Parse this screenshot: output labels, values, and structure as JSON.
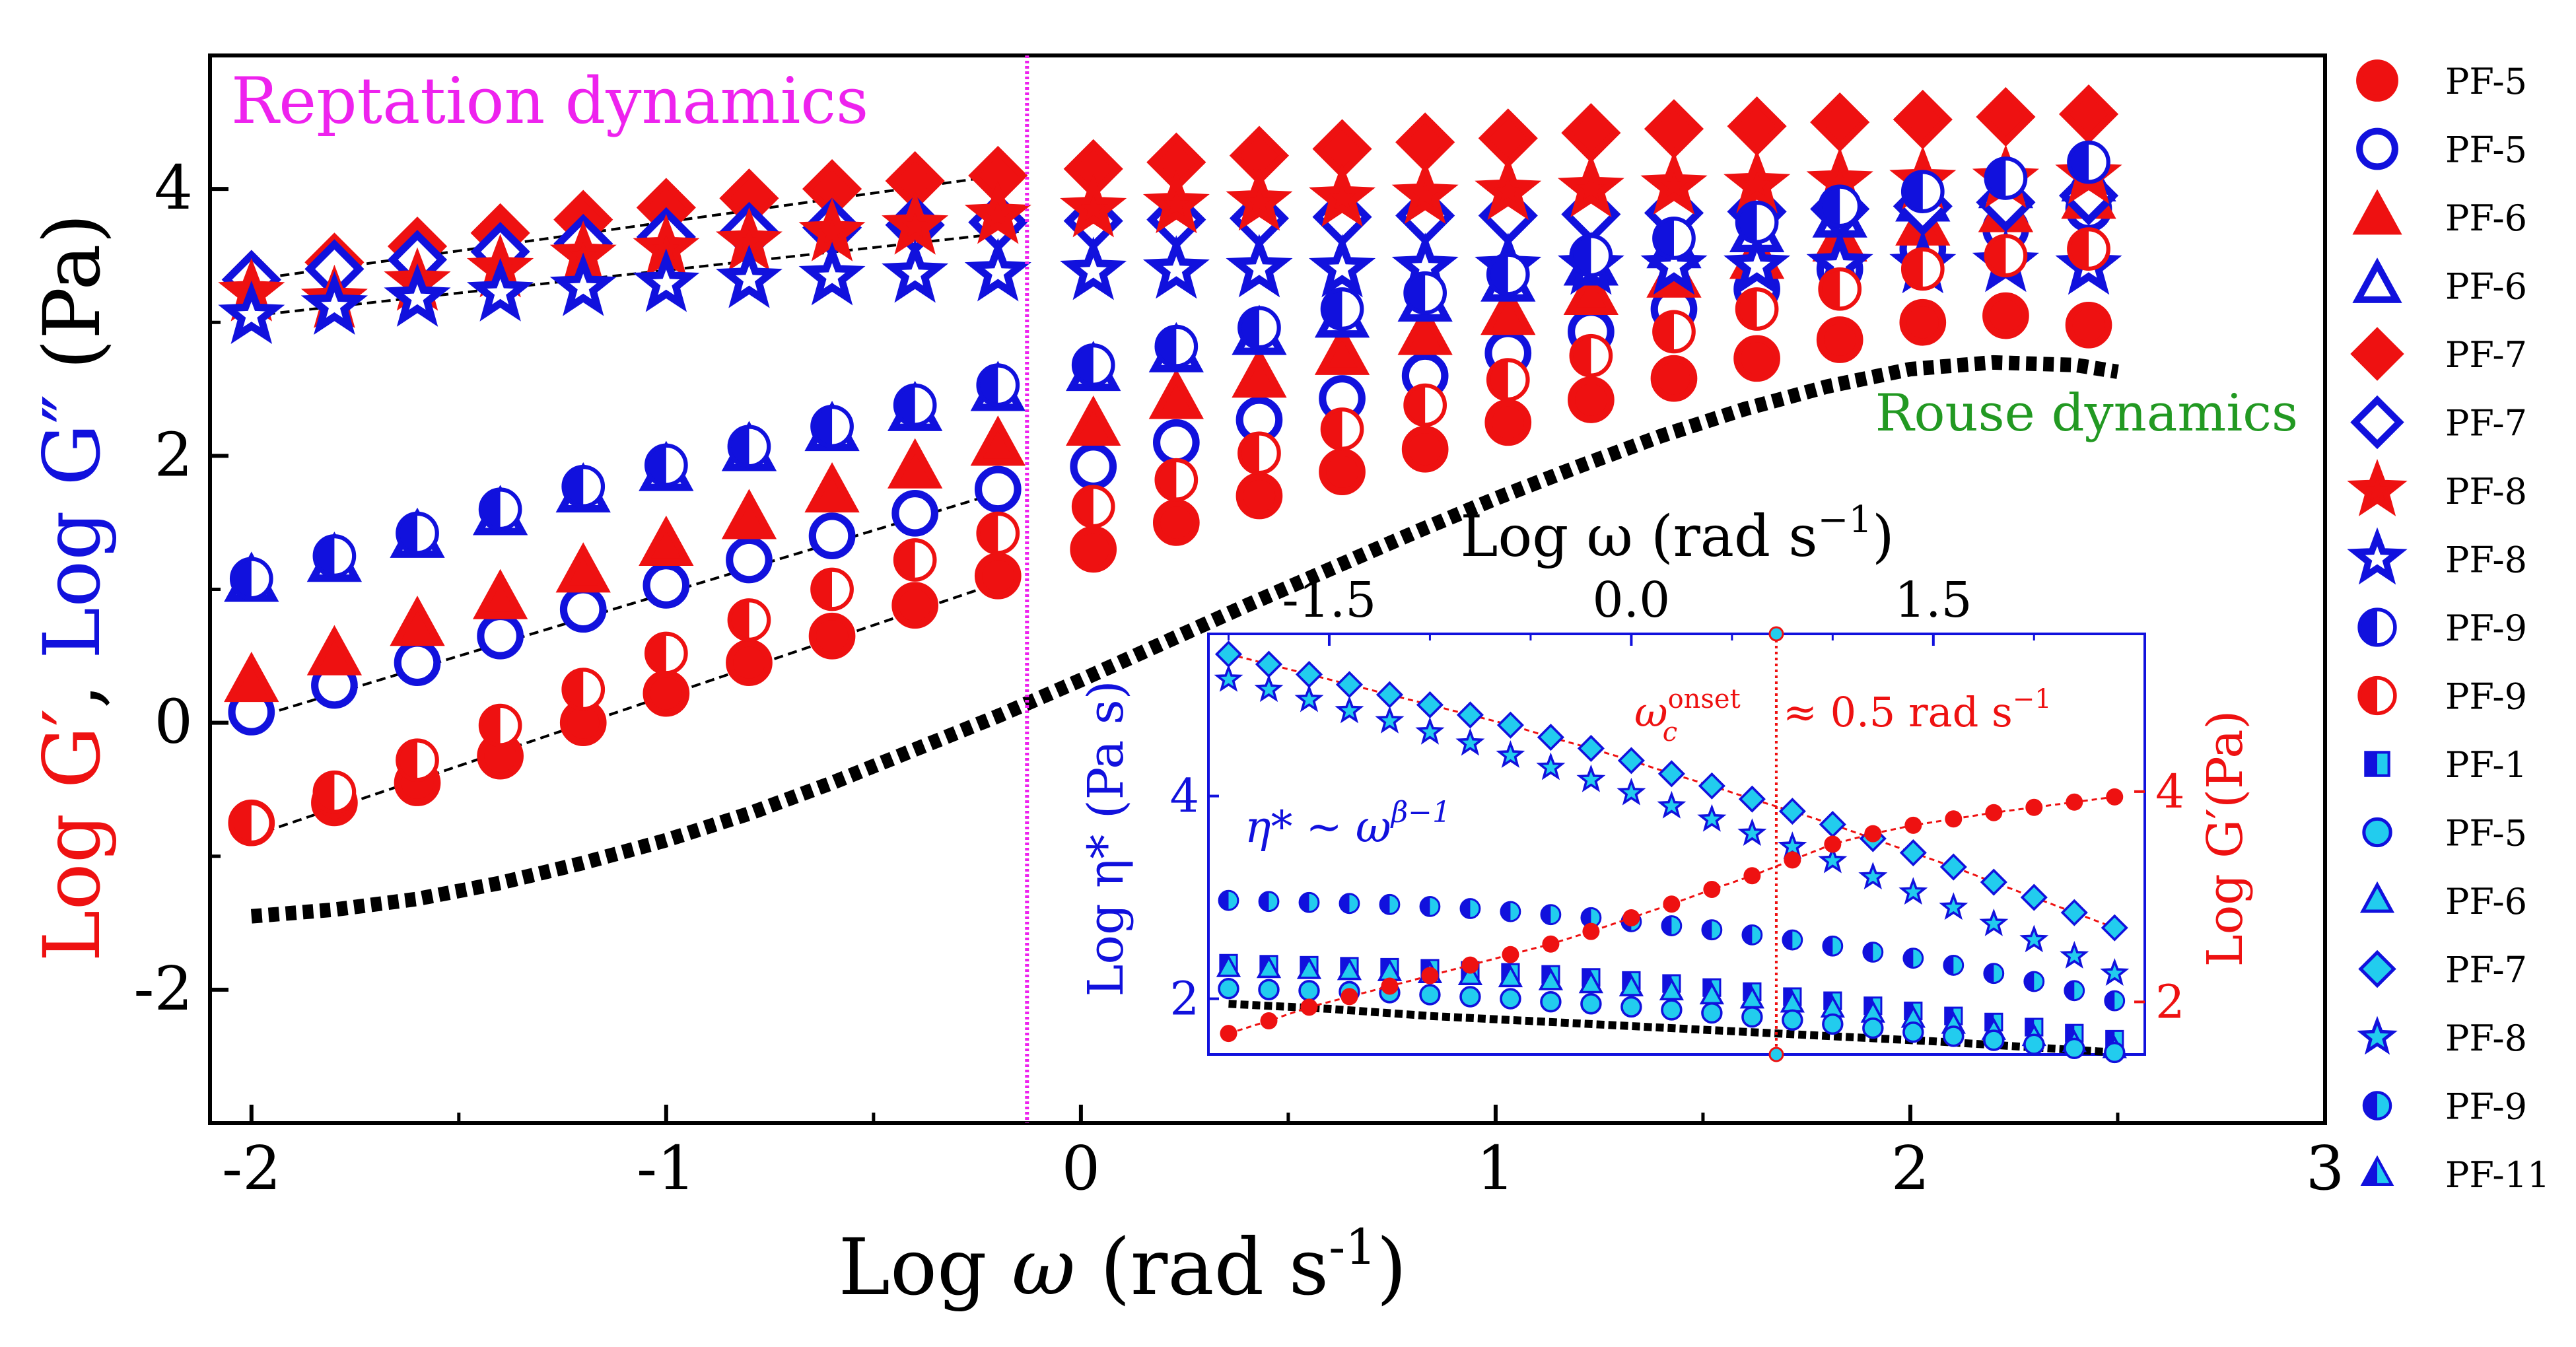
{
  "colors": {
    "red": "#ee1111",
    "blue": "#1111dd",
    "magenta": "#ee22ee",
    "green": "#229922",
    "cyan": "#22ccee",
    "black": "#000000"
  },
  "main": {
    "x_label_prefix": "Log ",
    "x_label_symbol": "ω",
    "x_label_unit": " (rad s",
    "x_label_sup": "-1",
    "x_label_close": ")",
    "y_label_part1": "Log G′",
    "y_label_sep": ", ",
    "y_label_part2": "Log G″",
    "y_label_unit": " (Pa)",
    "annotation_reptation": "Reptation dynamics",
    "annotation_rouse": "Rouse dynamics"
  },
  "inset": {
    "top_label": "Log ω (rad s",
    "top_label_sup": "−1",
    "top_label_close": ")",
    "left_label": "Log η* (Pa s)",
    "right_label": "Log G′(Pa)",
    "eq_eta": "η*",
    "eq_tilde": "~",
    "eq_omega": "ω",
    "eq_exp": "β−1",
    "omega_c": "ω",
    "omega_c_sup": "onset",
    "omega_c_sub": "c",
    "omega_c_value": "≈ 0.5 rad s",
    "omega_c_value_sup": "−1"
  },
  "legend": [
    {
      "label": "PF-5",
      "marker": "circle",
      "fill": "full",
      "color": "red"
    },
    {
      "label": "PF-5",
      "marker": "circle",
      "fill": "none",
      "color": "blue"
    },
    {
      "label": "PF-6",
      "marker": "triangle",
      "fill": "full",
      "color": "red"
    },
    {
      "label": "PF-6",
      "marker": "triangle",
      "fill": "none",
      "color": "blue"
    },
    {
      "label": "PF-7",
      "marker": "diamond",
      "fill": "full",
      "color": "red"
    },
    {
      "label": "PF-7",
      "marker": "diamond",
      "fill": "none",
      "color": "blue"
    },
    {
      "label": "PF-8",
      "marker": "star",
      "fill": "full",
      "color": "red"
    },
    {
      "label": "PF-8",
      "marker": "star",
      "fill": "none",
      "color": "blue"
    },
    {
      "label": "PF-9",
      "marker": "circle",
      "fill": "half",
      "color": "blue"
    },
    {
      "label": "PF-9",
      "marker": "circle",
      "fill": "half",
      "color": "red"
    },
    {
      "label": "PF-1",
      "marker": "square",
      "fill": "half",
      "color": "cyan"
    },
    {
      "label": "PF-5",
      "marker": "circle",
      "fill": "cyanfull",
      "color": "cyan"
    },
    {
      "label": "PF-6",
      "marker": "triangle",
      "fill": "cyanfull",
      "color": "cyan"
    },
    {
      "label": "PF-7",
      "marker": "diamond",
      "fill": "cyanfull",
      "color": "cyan"
    },
    {
      "label": "PF-8",
      "marker": "star",
      "fill": "cyanfull",
      "color": "cyan"
    },
    {
      "label": "PF-9",
      "marker": "circle",
      "fill": "half",
      "color": "cyan"
    },
    {
      "label": "PF-11",
      "marker": "triangle",
      "fill": "half",
      "color": "cyan"
    }
  ],
  "chart_data": [
    {
      "type": "scatter",
      "title": "",
      "xlabel": "Log ω (rad s-1)",
      "ylabel": "Log G′, Log G″ (Pa)",
      "xlim": [
        -2.1,
        3.0
      ],
      "ylim": [
        -3.0,
        5.0
      ],
      "xticks": [
        -2,
        -1,
        0,
        1,
        2,
        3
      ],
      "yticks": [
        -2,
        0,
        2,
        4
      ],
      "x": [
        -2.0,
        -1.8,
        -1.6,
        -1.4,
        -1.2,
        -1.0,
        -0.8,
        -0.6,
        -0.4,
        -0.2,
        0.0,
        0.2,
        0.4,
        0.6,
        0.8,
        1.0,
        1.2,
        1.4,
        1.6,
        1.8,
        2.0,
        2.2,
        2.4
      ],
      "x_display": [
        -2.0,
        -1.8,
        -1.6,
        -1.4,
        -1.2,
        -1.0,
        -0.8,
        -0.6,
        -0.4,
        -0.2,
        0.03,
        0.23,
        0.43,
        0.63,
        0.83,
        1.03,
        1.23,
        1.43,
        1.63,
        1.83,
        2.03,
        2.23,
        2.43
      ],
      "series": [
        {
          "name": "PF-5 G′",
          "marker": "circle",
          "fill": "full",
          "color": "red",
          "values": [
            -0.75,
            -0.6,
            -0.45,
            -0.25,
            0.0,
            0.22,
            0.45,
            0.65,
            0.88,
            1.1,
            1.3,
            1.5,
            1.7,
            1.88,
            2.05,
            2.25,
            2.42,
            2.58,
            2.73,
            2.87,
            3.0,
            3.05,
            2.98
          ]
        },
        {
          "name": "PF-5 G″",
          "marker": "circle",
          "fill": "none",
          "color": "blue",
          "values": [
            0.08,
            0.28,
            0.45,
            0.65,
            0.85,
            1.03,
            1.22,
            1.4,
            1.57,
            1.75,
            1.92,
            2.1,
            2.27,
            2.43,
            2.6,
            2.77,
            2.93,
            3.1,
            3.25,
            3.4,
            3.55,
            3.7,
            3.85
          ]
        },
        {
          "name": "PF-6 G′",
          "marker": "triangle",
          "fill": "full",
          "color": "red",
          "values": [
            0.3,
            0.5,
            0.72,
            0.92,
            1.12,
            1.32,
            1.52,
            1.72,
            1.9,
            2.07,
            2.22,
            2.42,
            2.58,
            2.75,
            2.9,
            3.05,
            3.2,
            3.33,
            3.47,
            3.6,
            3.72,
            3.82,
            3.92
          ]
        },
        {
          "name": "PF-6 G″",
          "marker": "triangle",
          "fill": "none",
          "color": "blue",
          "values": [
            1.05,
            1.2,
            1.38,
            1.55,
            1.72,
            1.88,
            2.03,
            2.18,
            2.33,
            2.48,
            2.63,
            2.77,
            2.9,
            3.03,
            3.15,
            3.3,
            3.42,
            3.55,
            3.67,
            3.78,
            3.9,
            4.0,
            4.05
          ]
        },
        {
          "name": "PF-7 G′",
          "marker": "diamond",
          "fill": "full",
          "color": "red",
          "values": [
            3.32,
            3.45,
            3.57,
            3.67,
            3.77,
            3.86,
            3.93,
            4.0,
            4.06,
            4.1,
            4.15,
            4.2,
            4.25,
            4.3,
            4.35,
            4.38,
            4.42,
            4.45,
            4.47,
            4.5,
            4.52,
            4.54,
            4.56
          ]
        },
        {
          "name": "PF-7 G″",
          "marker": "diamond",
          "fill": "none",
          "color": "blue",
          "values": [
            3.32,
            3.4,
            3.47,
            3.53,
            3.59,
            3.64,
            3.68,
            3.71,
            3.73,
            3.75,
            3.76,
            3.77,
            3.78,
            3.79,
            3.8,
            3.8,
            3.81,
            3.82,
            3.83,
            3.85,
            3.87,
            3.9,
            3.95
          ]
        },
        {
          "name": "PF-8 G′",
          "marker": "star",
          "fill": "full",
          "color": "red",
          "values": [
            3.22,
            3.17,
            3.3,
            3.4,
            3.5,
            3.55,
            3.6,
            3.67,
            3.72,
            3.8,
            3.85,
            3.88,
            3.9,
            3.93,
            3.95,
            3.98,
            4.0,
            4.02,
            4.03,
            4.05,
            4.06,
            4.07,
            4.1
          ]
        },
        {
          "name": "PF-8 G″",
          "marker": "star",
          "fill": "none",
          "color": "blue",
          "values": [
            3.05,
            3.12,
            3.18,
            3.22,
            3.26,
            3.29,
            3.32,
            3.34,
            3.36,
            3.37,
            3.38,
            3.39,
            3.4,
            3.4,
            3.41,
            3.41,
            3.42,
            3.42,
            3.42,
            3.43,
            3.43,
            3.44,
            3.42
          ]
        },
        {
          "name": "PF-9 G″",
          "marker": "circle",
          "fill": "half",
          "color": "blue",
          "values": [
            1.08,
            1.25,
            1.42,
            1.6,
            1.77,
            1.93,
            2.07,
            2.22,
            2.38,
            2.53,
            2.68,
            2.82,
            2.96,
            3.1,
            3.22,
            3.36,
            3.5,
            3.63,
            3.75,
            3.87,
            3.98,
            4.08,
            4.2
          ]
        },
        {
          "name": "PF-9 G′",
          "marker": "circle",
          "fill": "half",
          "color": "red",
          "values": [
            -0.75,
            -0.52,
            -0.28,
            -0.02,
            0.25,
            0.52,
            0.77,
            1.0,
            1.22,
            1.42,
            1.62,
            1.82,
            2.02,
            2.2,
            2.38,
            2.57,
            2.75,
            2.93,
            3.1,
            3.25,
            3.4,
            3.5,
            3.55
          ]
        }
      ],
      "guide_lines": [
        {
          "from": [
            -2.0,
            -0.85
          ],
          "to": [
            -0.15,
            1.1
          ]
        },
        {
          "from": [
            -2.0,
            0.03
          ],
          "to": [
            -0.15,
            1.77
          ]
        },
        {
          "from": [
            -2.0,
            3.05
          ],
          "to": [
            -0.15,
            3.68
          ]
        },
        {
          "from": [
            -2.0,
            3.32
          ],
          "to": [
            -0.15,
            4.12
          ]
        }
      ],
      "rouse_curve": {
        "x": [
          -2.0,
          -1.8,
          -1.6,
          -1.4,
          -1.2,
          -1.0,
          -0.8,
          -0.6,
          -0.4,
          -0.2,
          0.0,
          0.2,
          0.4,
          0.6,
          0.8,
          1.0,
          1.2,
          1.4,
          1.6,
          1.8,
          2.0,
          2.2,
          2.4,
          2.5
        ],
        "y": [
          -1.45,
          -1.4,
          -1.32,
          -1.2,
          -1.05,
          -0.88,
          -0.68,
          -0.45,
          -0.2,
          0.05,
          0.32,
          0.6,
          0.88,
          1.15,
          1.42,
          1.68,
          1.92,
          2.15,
          2.35,
          2.52,
          2.65,
          2.7,
          2.68,
          2.63
        ]
      },
      "vline_x": -0.13
    },
    {
      "type": "scatter",
      "title": "inset",
      "xlabel": "Log ω (rad s−1)",
      "ylabel_left": "Log η* (Pa s)",
      "ylabel_right": "Log G′(Pa)",
      "xlim": [
        -2.1,
        2.55
      ],
      "xticks": [
        -1.5,
        0.0,
        1.5
      ],
      "ylim_left": [
        1.45,
        5.6
      ],
      "yticks_left": [
        2,
        4
      ],
      "ylim_right": [
        1.5,
        5.5
      ],
      "yticks_right": [
        2,
        4
      ],
      "vline_x": 0.72,
      "x": [
        -2.0,
        -1.8,
        -1.6,
        -1.4,
        -1.2,
        -1.0,
        -0.8,
        -0.6,
        -0.4,
        -0.2,
        0.0,
        0.2,
        0.4,
        0.6,
        0.8,
        1.0,
        1.2,
        1.4,
        1.6,
        1.8,
        2.0,
        2.2,
        2.4
      ],
      "series": [
        {
          "name": "PF-7 η*",
          "marker": "diamond",
          "color": "cyan",
          "values": [
            5.4,
            5.3,
            5.2,
            5.1,
            5.0,
            4.9,
            4.8,
            4.7,
            4.58,
            4.47,
            4.35,
            4.22,
            4.1,
            3.97,
            3.85,
            3.72,
            3.58,
            3.44,
            3.3,
            3.15,
            3.0,
            2.85,
            2.7
          ]
        },
        {
          "name": "PF-8 η*",
          "marker": "star",
          "color": "cyan",
          "values": [
            5.15,
            5.05,
            4.95,
            4.84,
            4.74,
            4.63,
            4.52,
            4.4,
            4.28,
            4.16,
            4.03,
            3.9,
            3.77,
            3.63,
            3.5,
            3.36,
            3.2,
            3.05,
            2.9,
            2.74,
            2.58,
            2.42,
            2.25
          ]
        },
        {
          "name": "PF-9 η*",
          "marker": "circle",
          "color": "cyan",
          "values": [
            2.97,
            2.96,
            2.95,
            2.94,
            2.93,
            2.91,
            2.89,
            2.86,
            2.83,
            2.8,
            2.76,
            2.72,
            2.68,
            2.63,
            2.58,
            2.52,
            2.46,
            2.4,
            2.33,
            2.25,
            2.17,
            2.08,
            1.98
          ]
        },
        {
          "name": "PF-1 η*",
          "marker": "square",
          "color": "cyan",
          "values": [
            2.35,
            2.34,
            2.33,
            2.32,
            2.31,
            2.3,
            2.28,
            2.26,
            2.24,
            2.21,
            2.18,
            2.15,
            2.11,
            2.07,
            2.02,
            1.98,
            1.93,
            1.88,
            1.83,
            1.77,
            1.72,
            1.66,
            1.6
          ]
        },
        {
          "name": "PF-6 η*",
          "marker": "triangle",
          "color": "cyan",
          "values": [
            2.3,
            2.29,
            2.28,
            2.27,
            2.26,
            2.24,
            2.22,
            2.2,
            2.17,
            2.14,
            2.11,
            2.07,
            2.03,
            1.99,
            1.95,
            1.9,
            1.85,
            1.8,
            1.74,
            1.68,
            1.62,
            1.56,
            1.5
          ]
        },
        {
          "name": "PF-5 η*",
          "marker": "circle",
          "color": "cyan",
          "values": [
            2.1,
            2.09,
            2.08,
            2.07,
            2.06,
            2.04,
            2.02,
            2.0,
            1.97,
            1.95,
            1.92,
            1.89,
            1.86,
            1.82,
            1.79,
            1.75,
            1.71,
            1.67,
            1.63,
            1.59,
            1.55,
            1.51,
            1.47
          ]
        },
        {
          "name": "G′",
          "marker": "circle",
          "color": "red",
          "axis": "right",
          "values": [
            1.7,
            1.82,
            1.95,
            2.05,
            2.15,
            2.25,
            2.35,
            2.45,
            2.55,
            2.67,
            2.8,
            2.93,
            3.07,
            3.2,
            3.35,
            3.5,
            3.6,
            3.68,
            3.74,
            3.8,
            3.85,
            3.9,
            3.95
          ]
        }
      ],
      "black_curve": {
        "x": [
          -2.0,
          -1.5,
          -1.0,
          -0.5,
          0.0,
          0.5,
          1.0,
          1.5,
          2.0,
          2.4
        ],
        "y": [
          1.95,
          1.9,
          1.83,
          1.78,
          1.73,
          1.68,
          1.63,
          1.58,
          1.52,
          1.47
        ]
      }
    }
  ]
}
